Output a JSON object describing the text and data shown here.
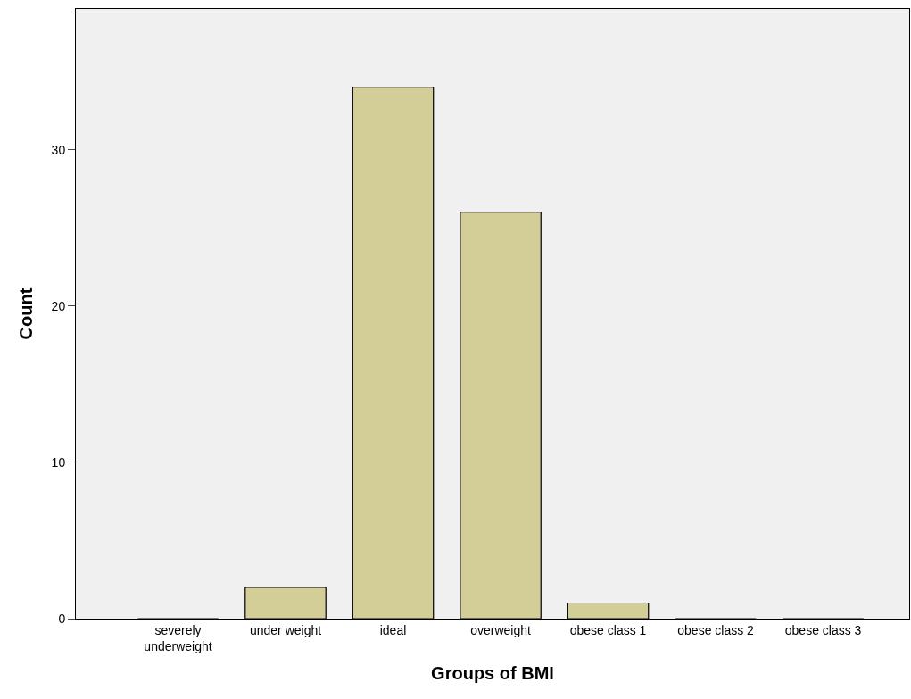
{
  "chart_data": {
    "type": "bar",
    "xlabel": "Groups of BMI",
    "ylabel": "Count",
    "categories": [
      "severely\nunderweight",
      "under weight",
      "ideal",
      "overweight",
      "obese class 1",
      "obese class 2",
      "obese class 3"
    ],
    "values": [
      0,
      2,
      34,
      26,
      1,
      0,
      0
    ],
    "color": "#d3ce97",
    "ylim": [
      0,
      39
    ],
    "yticks": [
      0,
      10,
      20,
      30
    ],
    "grid": false,
    "legend": false
  }
}
